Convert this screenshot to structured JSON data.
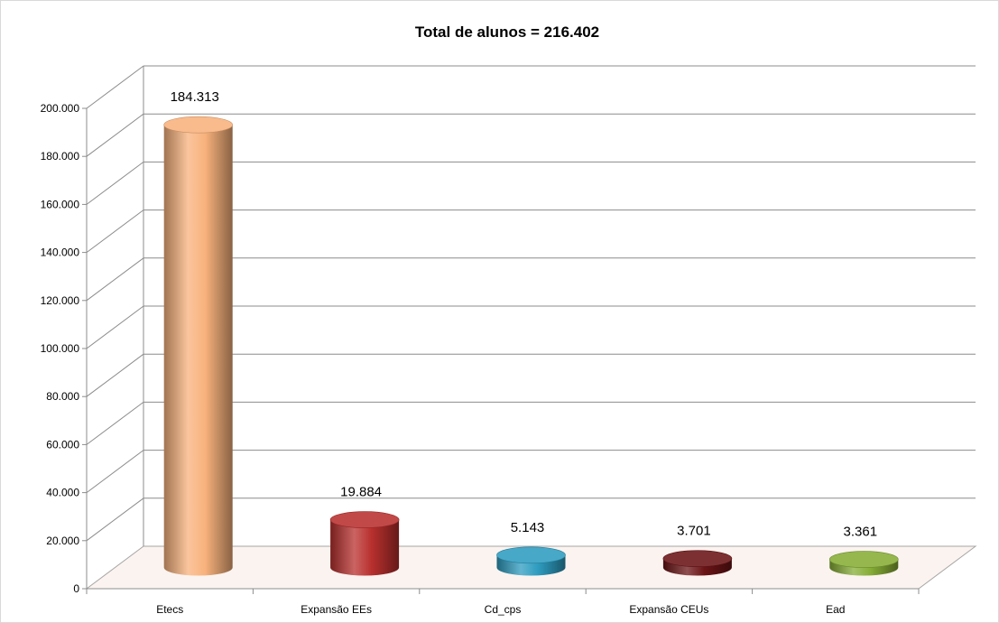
{
  "chart_data": {
    "type": "bar",
    "title": "Total de alunos = 216.402",
    "xlabel": "",
    "ylabel": "",
    "categories": [
      "Etecs",
      "Expansão EEs",
      "Cd_cps",
      "Expansão CEUs",
      "Ead"
    ],
    "values": [
      184313,
      19884,
      5143,
      3701,
      3361
    ],
    "data_labels": [
      "184.313",
      "19.884",
      "5.143",
      "3.701",
      "3.361"
    ],
    "ylim": [
      0,
      200000
    ],
    "yticks": [
      0,
      20000,
      40000,
      60000,
      80000,
      100000,
      120000,
      140000,
      160000,
      180000,
      200000
    ],
    "ytick_labels": [
      "0",
      "20.000",
      "40.000",
      "60.000",
      "80.000",
      "100.000",
      "120.000",
      "140.000",
      "160.000",
      "180.000",
      "200.000"
    ],
    "grid": true,
    "legend": "none",
    "style": "3d-cylinder",
    "colors": [
      "#f8b27c",
      "#b8302e",
      "#2e9cc0",
      "#6b1416",
      "#86ad36"
    ]
  }
}
